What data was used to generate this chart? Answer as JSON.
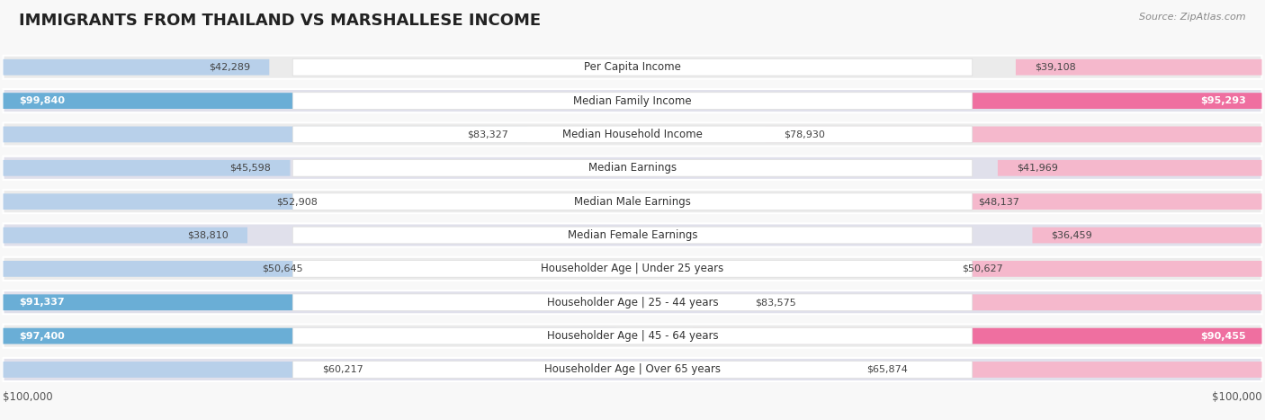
{
  "title": "IMMIGRANTS FROM THAILAND VS MARSHALLESE INCOME",
  "source": "Source: ZipAtlas.com",
  "categories": [
    "Per Capita Income",
    "Median Family Income",
    "Median Household Income",
    "Median Earnings",
    "Median Male Earnings",
    "Median Female Earnings",
    "Householder Age | Under 25 years",
    "Householder Age | 25 - 44 years",
    "Householder Age | 45 - 64 years",
    "Householder Age | Over 65 years"
  ],
  "thailand_values": [
    42289,
    99840,
    83327,
    45598,
    52908,
    38810,
    50645,
    91337,
    97400,
    60217
  ],
  "marshallese_values": [
    39108,
    95293,
    78930,
    41969,
    48137,
    36459,
    50627,
    83575,
    90455,
    65874
  ],
  "thailand_color_light": "#b8d0ea",
  "thailand_color_dark": "#6aaed6",
  "marshallese_color_light": "#f5b8cc",
  "marshallese_color_dark": "#ef6fa0",
  "row_bg": "#f0f0f0",
  "chart_bg": "#f8f8f8",
  "max_value": 100000,
  "label_fontsize": 8.5,
  "value_fontsize": 8.0,
  "title_fontsize": 13,
  "legend_fontsize": 9,
  "threshold_dark": 88000
}
